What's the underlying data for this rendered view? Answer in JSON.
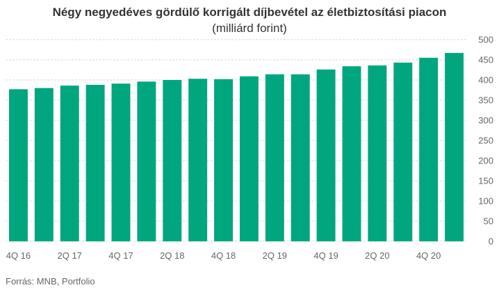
{
  "title": "Négy negyedéves gördülő korrigált díjbevétel az életbiztosítási piacon",
  "subtitle": "(milliárd forint)",
  "source": "Forrás: MNB, Portfolio",
  "colors": {
    "bar": "#00a67e",
    "grid": "#d9d9d9",
    "text": "#666666"
  },
  "chart_data": {
    "type": "bar",
    "categories": [
      "4Q 16",
      "1Q 17",
      "2Q 17",
      "3Q 17",
      "4Q 17",
      "1Q 18",
      "2Q 18",
      "3Q 18",
      "4Q 18",
      "1Q 19",
      "2Q 19",
      "3Q 19",
      "4Q 19",
      "1Q 20",
      "2Q 20",
      "3Q 20",
      "4Q 20",
      "1Q 21"
    ],
    "tick_labels": [
      "4Q 16",
      "",
      "2Q 17",
      "",
      "4Q 17",
      "",
      "2Q 18",
      "",
      "4Q 18",
      "",
      "2Q 19",
      "",
      "4Q 19",
      "",
      "2Q 20",
      "",
      "4Q 20",
      ""
    ],
    "values": [
      377,
      380,
      386,
      388,
      391,
      396,
      400,
      403,
      402,
      409,
      414,
      414,
      426,
      434,
      436,
      443,
      455,
      467
    ],
    "ylim": [
      0,
      500
    ],
    "yticks": [
      0,
      50,
      100,
      150,
      200,
      250,
      300,
      350,
      400,
      450,
      500
    ],
    "y_axis_side": "right",
    "grid": true,
    "xlabel": "",
    "ylabel": ""
  }
}
